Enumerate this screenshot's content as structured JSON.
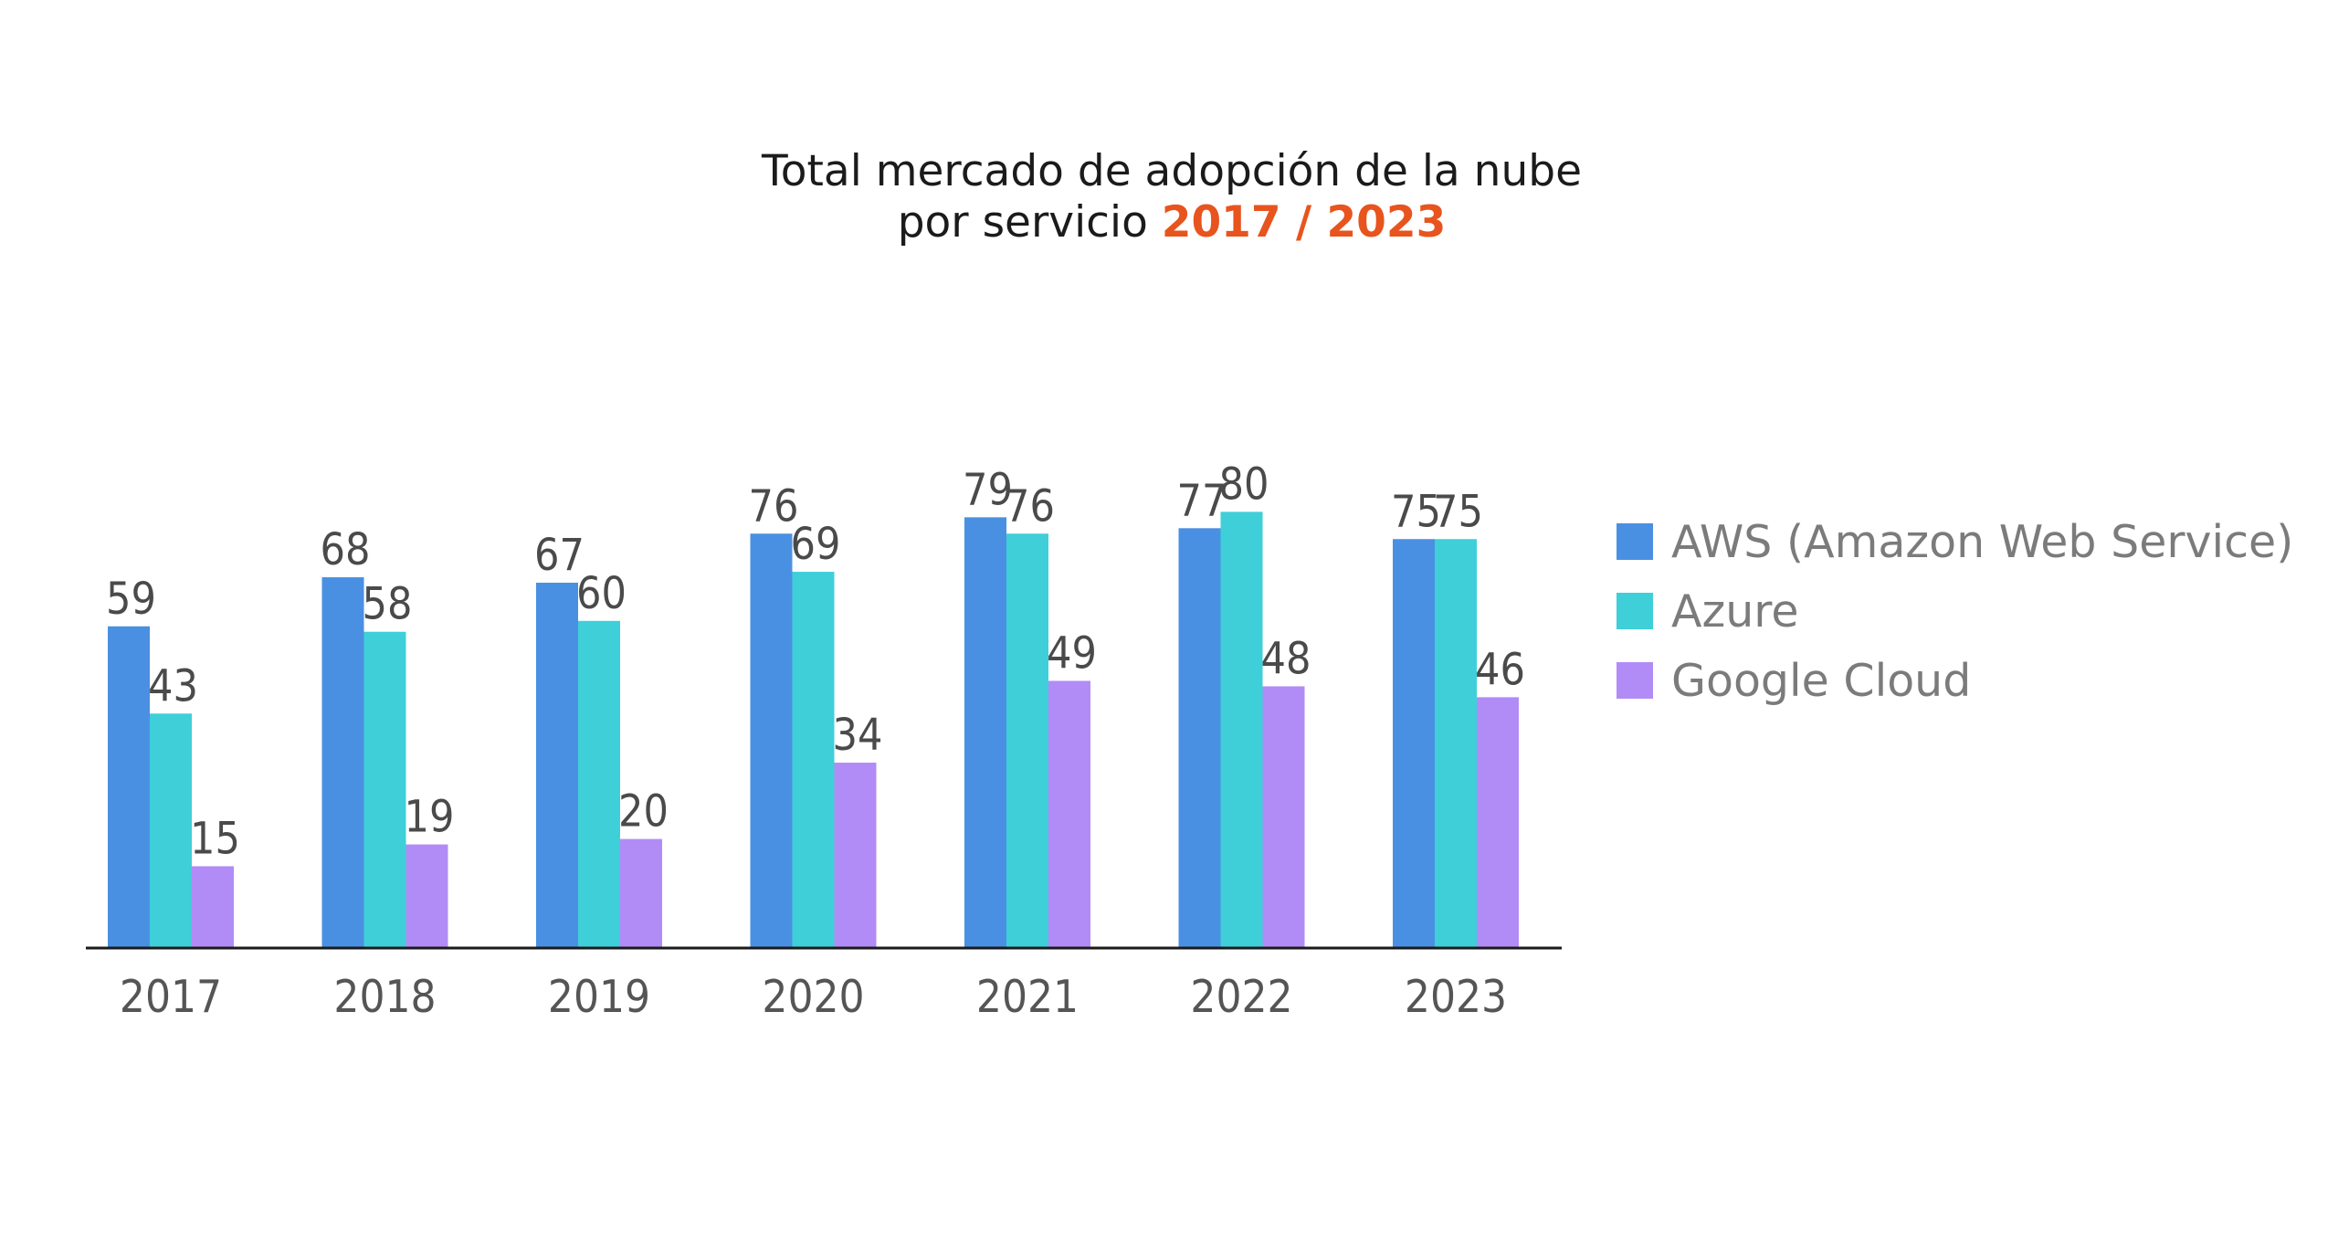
{
  "title": {
    "line1": "Total mercado de adopción de la nube",
    "line2_prefix": "por servicio ",
    "line2_accent": "2017 / 2023"
  },
  "colors": {
    "accent": "#e8541e"
  },
  "chart_data": {
    "type": "bar",
    "title": "Total mercado de adopción de la nube por servicio 2017 / 2023",
    "categories": [
      "2017",
      "2018",
      "2019",
      "2020",
      "2021",
      "2022",
      "2023"
    ],
    "series": [
      {
        "name": "AWS (Amazon Web Service)",
        "color": "#4a90e2",
        "values": [
          59,
          68,
          67,
          76,
          79,
          77,
          75
        ]
      },
      {
        "name": "Azure",
        "color": "#3ecfd9",
        "values": [
          43,
          58,
          60,
          69,
          76,
          80,
          75
        ]
      },
      {
        "name": "Google Cloud",
        "color": "#b18cf7",
        "values": [
          15,
          19,
          20,
          34,
          49,
          48,
          46
        ]
      }
    ],
    "data_labels": true,
    "legend_position": "right",
    "grid": false,
    "ylim": [
      0,
      80
    ]
  }
}
